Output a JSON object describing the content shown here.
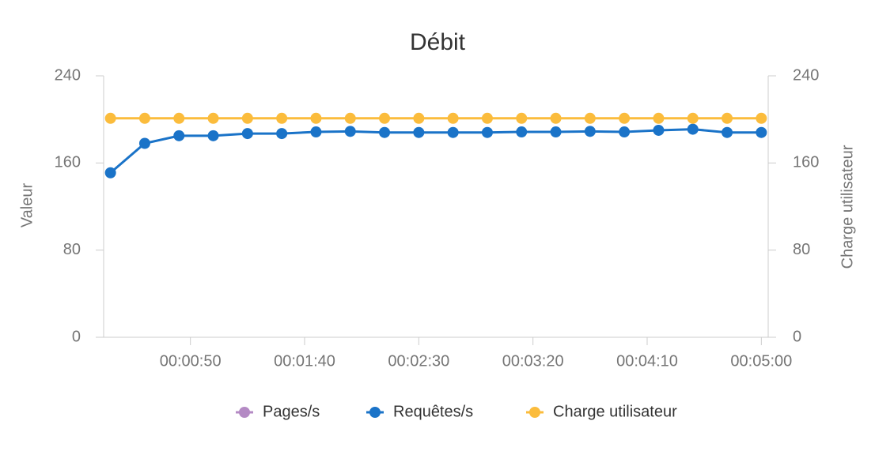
{
  "chart_data": {
    "type": "line",
    "title": "Débit",
    "y_label": "Valeur",
    "y2_label": "Charge utilisateur",
    "x": [
      15,
      30,
      45,
      60,
      75,
      90,
      105,
      120,
      135,
      150,
      165,
      180,
      195,
      210,
      225,
      240,
      255,
      270,
      285,
      300
    ],
    "xlim": [
      12,
      303
    ],
    "xticks": [
      {
        "value": 50,
        "label": "00:00:50"
      },
      {
        "value": 100,
        "label": "00:01:40"
      },
      {
        "value": 150,
        "label": "00:02:30"
      },
      {
        "value": 200,
        "label": "00:03:20"
      },
      {
        "value": 250,
        "label": "00:04:10"
      },
      {
        "value": 300,
        "label": "00:05:00"
      }
    ],
    "ylim": [
      0,
      240
    ],
    "yticks": [
      0,
      80,
      160,
      240
    ],
    "y2lim": [
      0,
      240
    ],
    "y2ticks": [
      0,
      80,
      160,
      240
    ],
    "series": [
      {
        "name": "Pages/s",
        "color": "#b48ac4",
        "values": [
          null,
          null,
          null,
          null,
          null,
          null,
          null,
          null,
          null,
          null,
          null,
          null,
          null,
          null,
          null,
          null,
          null,
          null,
          null,
          null
        ]
      },
      {
        "name": "Requêtes/s",
        "color": "#1a73c8",
        "values": [
          151,
          178,
          185,
          185,
          187,
          187,
          188.5,
          189,
          188,
          188,
          188,
          188,
          188.5,
          188.5,
          189,
          188.5,
          190,
          191,
          188,
          188
        ]
      },
      {
        "name": "Charge utilisateur",
        "color": "#fbbc3c",
        "axis": "y2",
        "values": [
          201,
          201,
          201,
          201,
          201,
          201,
          201,
          201,
          201,
          201,
          201,
          201,
          201,
          201,
          201,
          201,
          201,
          201,
          201,
          201
        ]
      }
    ]
  }
}
